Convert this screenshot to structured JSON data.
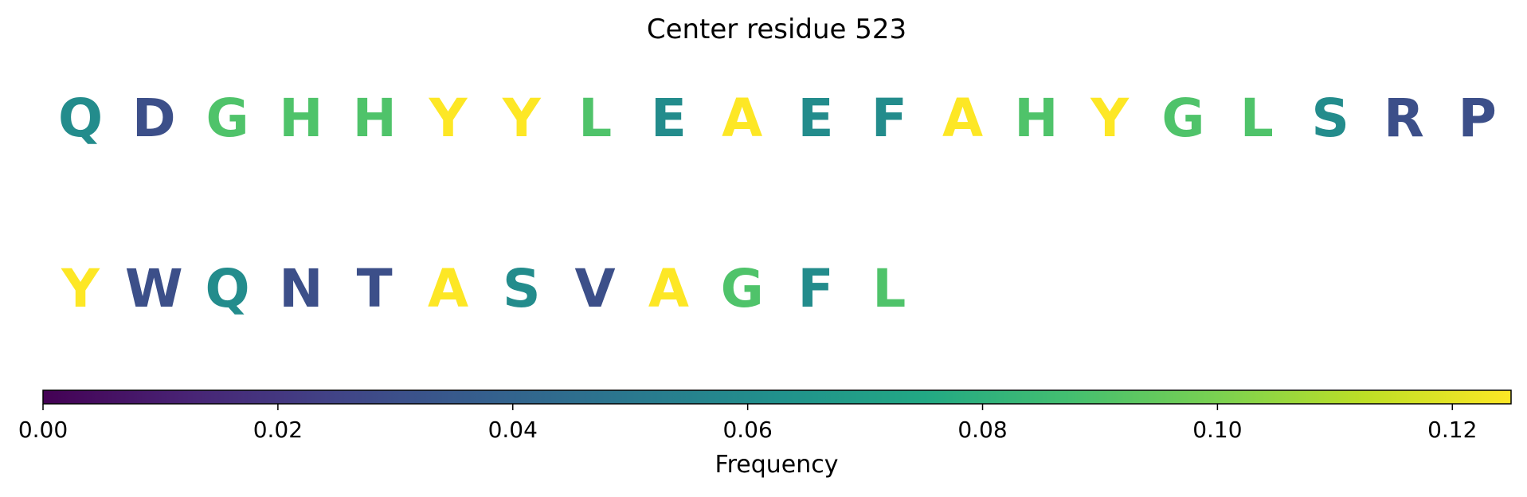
{
  "chart_data": {
    "type": "sequence-logo-colormap",
    "title": "Center residue 523",
    "rows": [
      {
        "residues": [
          {
            "letter": "Q",
            "frequency": 0.06
          },
          {
            "letter": "D",
            "frequency": 0.03
          },
          {
            "letter": "G",
            "frequency": 0.09
          },
          {
            "letter": "H",
            "frequency": 0.09
          },
          {
            "letter": "H",
            "frequency": 0.09
          },
          {
            "letter": "Y",
            "frequency": 0.125
          },
          {
            "letter": "Y",
            "frequency": 0.125
          },
          {
            "letter": "L",
            "frequency": 0.09
          },
          {
            "letter": "E",
            "frequency": 0.06
          },
          {
            "letter": "A",
            "frequency": 0.125
          },
          {
            "letter": "E",
            "frequency": 0.06
          },
          {
            "letter": "F",
            "frequency": 0.06
          },
          {
            "letter": "A",
            "frequency": 0.125
          },
          {
            "letter": "H",
            "frequency": 0.09
          },
          {
            "letter": "Y",
            "frequency": 0.125
          },
          {
            "letter": "G",
            "frequency": 0.09
          },
          {
            "letter": "L",
            "frequency": 0.09
          },
          {
            "letter": "S",
            "frequency": 0.06
          },
          {
            "letter": "R",
            "frequency": 0.03
          },
          {
            "letter": "P",
            "frequency": 0.03
          }
        ]
      },
      {
        "residues": [
          {
            "letter": "Y",
            "frequency": 0.125
          },
          {
            "letter": "W",
            "frequency": 0.03
          },
          {
            "letter": "Q",
            "frequency": 0.06
          },
          {
            "letter": "N",
            "frequency": 0.03
          },
          {
            "letter": "T",
            "frequency": 0.03
          },
          {
            "letter": "A",
            "frequency": 0.125
          },
          {
            "letter": "S",
            "frequency": 0.06
          },
          {
            "letter": "V",
            "frequency": 0.03
          },
          {
            "letter": "A",
            "frequency": 0.125
          },
          {
            "letter": "G",
            "frequency": 0.09
          },
          {
            "letter": "F",
            "frequency": 0.06
          },
          {
            "letter": "L",
            "frequency": 0.09
          }
        ]
      }
    ],
    "colorbar": {
      "label": "Frequency",
      "colormap": "viridis",
      "range": [
        0,
        0.125
      ],
      "ticks": [
        0.0,
        0.02,
        0.04,
        0.06,
        0.08,
        0.1,
        0.12
      ],
      "tick_labels": [
        "0.00",
        "0.02",
        "0.04",
        "0.06",
        "0.08",
        "0.10",
        "0.12"
      ],
      "orientation": "horizontal",
      "placement": "bottom"
    }
  }
}
